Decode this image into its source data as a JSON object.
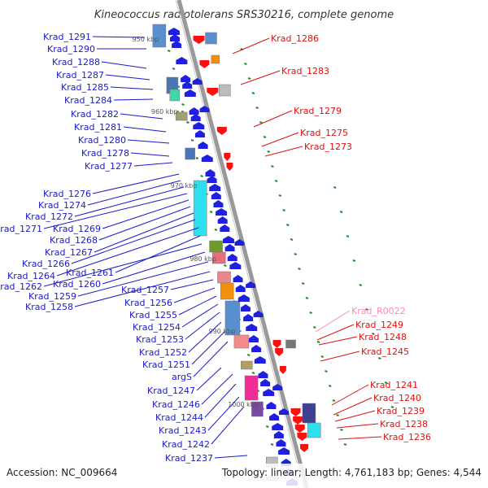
{
  "title": "Kineococcus radiotolerans SRS30216, complete genome",
  "accession": "Accession: NC_009664",
  "topology": "Topology: linear; Length: 4,761,183 bp; Genes: 4,544",
  "colors": {
    "left_label": "#1a1acc",
    "right_label": "#dd1111",
    "rna_label": "#ff88bb",
    "minus_strand_gene": "#1f1fe0",
    "plus_strand_gene": "#ff1010",
    "tick": "#2a8a2a",
    "backbone": "#999999"
  },
  "kbp_marks": [
    "950 kbp",
    "960 kbp",
    "970 kbp",
    "980 kbp",
    "990 kbp",
    "1000 kbp",
    "1010 kbp"
  ],
  "left_labels": [
    "Krad_1291",
    "Krad_1290",
    "Krad_1288",
    "Krad_1287",
    "Krad_1285",
    "Krad_1284",
    "Krad_1282",
    "Krad_1281",
    "Krad_1280",
    "Krad_1278",
    "Krad_1277",
    "Krad_1276",
    "Krad_1274",
    "Krad_1272",
    "Krad_1271",
    "Krad_1269",
    "Krad_1268",
    "Krad_1267",
    "Krad_1266",
    "Krad_1264",
    "Krad_1261",
    "Krad_1262",
    "Krad_1260",
    "Krad_1259",
    "Krad_1258",
    "Krad_1257",
    "Krad_1256",
    "Krad_1255",
    "Krad_1254",
    "Krad_1253",
    "Krad_1252",
    "Krad_1251",
    "argS",
    "Krad_1247",
    "Krad_1246",
    "Krad_1244",
    "Krad_1243",
    "Krad_1242",
    "Krad_1237"
  ],
  "right_labels": [
    "Krad_1286",
    "Krad_1283",
    "Krad_1279",
    "Krad_1275",
    "Krad_1273",
    "Krad_R0022",
    "Krad_1249",
    "Krad_1248",
    "Krad_1245",
    "Krad_1241",
    "Krad_1240",
    "Krad_1239",
    "Krad_1238",
    "Krad_1236"
  ]
}
